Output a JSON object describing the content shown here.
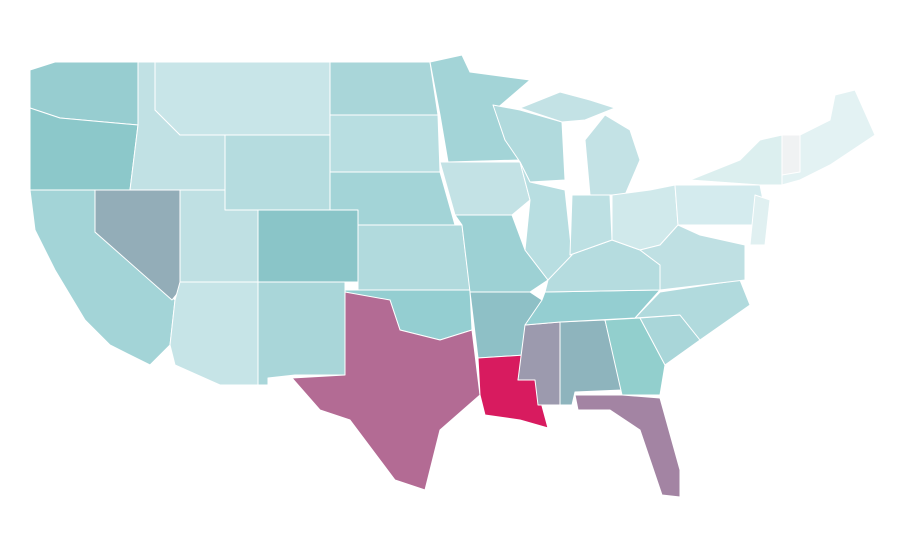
{
  "map": {
    "region_fills": [
      "#97cdd0",
      "#8cc8ca",
      "#a3d4d7",
      "#93adb8",
      "#c1e1e4",
      "#c8e5e8",
      "#b5dcdf",
      "#bfe0e3",
      "#8ac5c8",
      "#c6e4e7",
      "#a9d6d9",
      "#a9d6d9",
      "#b8dee1",
      "#a3d4d7",
      "#b1dadd",
      "#94ced1",
      "#b36b94",
      "#a3d4d7",
      "#c3e2e5",
      "#9dd1d4",
      "#8ec0c6",
      "#d81b5f",
      "#9c9aae",
      "#8eb4bd",
      "#92cfcd",
      "#a384a3",
      "#a9d6d9",
      "#b1dadd",
      "#94ced1",
      "#b5dcdf",
      "#b1dadd",
      "#b8dee1",
      "#bde0e3",
      "#c3e2e5",
      "#c3e2e5",
      "#d0e9eb",
      "#bfe0e3",
      "#d4ebee",
      "#dcefef",
      "#e3f2f3",
      "#f0f2f3",
      "#e0f0f1"
    ]
  }
}
